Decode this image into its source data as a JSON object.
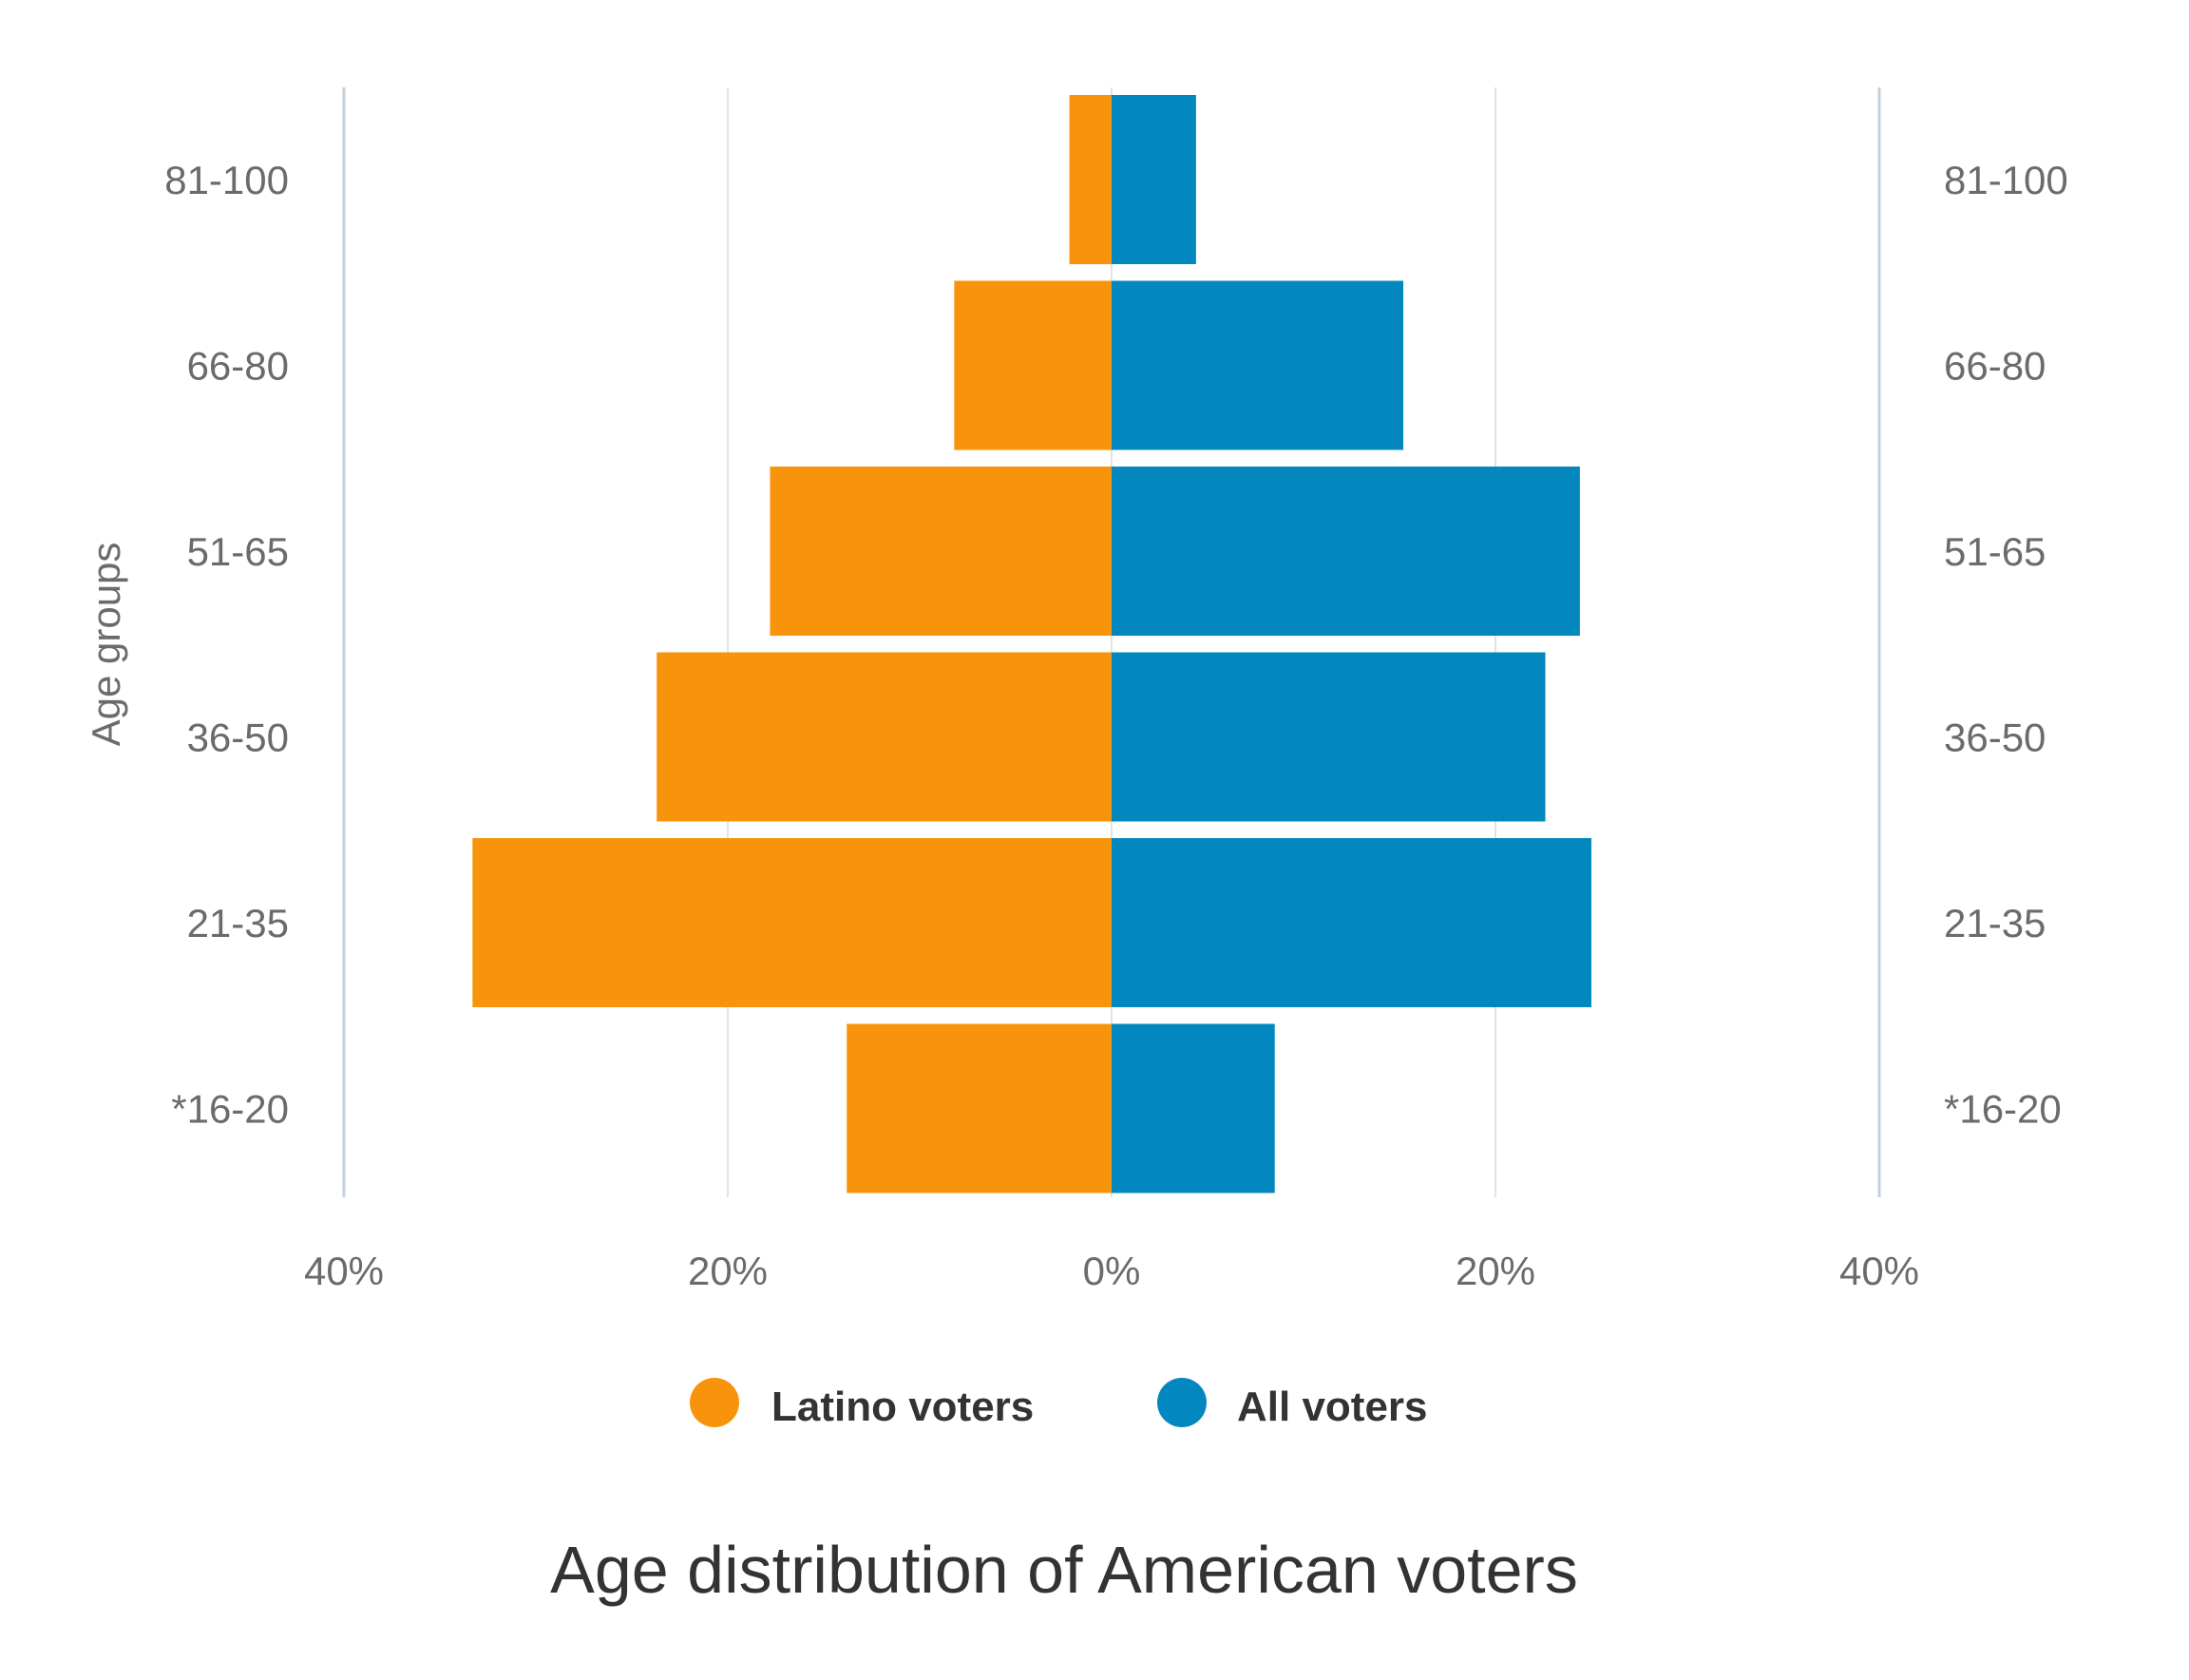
{
  "chart_data": {
    "type": "bar",
    "orientation": "horizontal-diverging",
    "title": "Age distribution of American voters",
    "ylabel": "Age groups",
    "xlabel": "",
    "categories": [
      "81-100",
      "66-80",
      "51-65",
      "36-50",
      "21-35",
      "*16-20"
    ],
    "series": [
      {
        "name": "Latino voters",
        "color": "#F7940C",
        "side": "left",
        "values": [
          2.2,
          8.2,
          17.8,
          23.7,
          33.3,
          13.8
        ]
      },
      {
        "name": "All voters",
        "color": "#0288BF",
        "side": "right",
        "values": [
          4.4,
          15.2,
          24.4,
          22.6,
          25.0,
          8.5
        ]
      }
    ],
    "xlim": [
      -40,
      40
    ],
    "x_ticks": [
      -40,
      -20,
      0,
      20,
      40
    ],
    "x_tick_labels": [
      "40%",
      "20%",
      "0%",
      "20%",
      "40%"
    ],
    "grid": true,
    "legend": "bottom-center"
  }
}
